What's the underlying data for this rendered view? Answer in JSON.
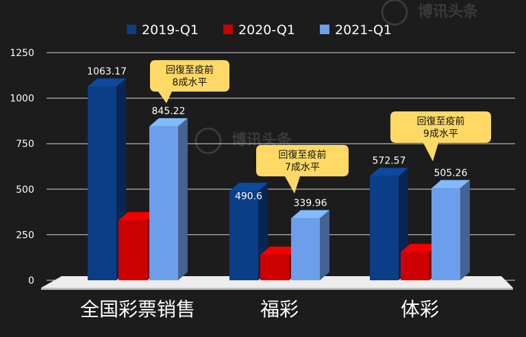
{
  "chart_data": {
    "type": "bar",
    "categories": [
      "全国彩票销售",
      "福彩",
      "体彩"
    ],
    "series": [
      {
        "name": "2019-Q1",
        "color": "#0b3e86",
        "values": [
          1063.17,
          490.6,
          572.57
        ]
      },
      {
        "name": "2020-Q1",
        "color": "#cc0000",
        "values": [
          330,
          140,
          155
        ]
      },
      {
        "name": "2021-Q1",
        "color": "#6d9eeb",
        "values": [
          845.22,
          339.96,
          505.26
        ]
      }
    ],
    "data_labels": {
      "2019-Q1": [
        "1063.17",
        "490.6",
        "572.57"
      ],
      "2021-Q1": [
        "845.22",
        "339.96",
        "505.26"
      ]
    },
    "y_ticks": [
      "0",
      "250",
      "500",
      "750",
      "1000",
      "1250"
    ],
    "ylim": [
      0,
      1250
    ],
    "grid": true,
    "legend_position": "top",
    "callouts": [
      {
        "line1": "回復至疫前",
        "line2": "8成水平"
      },
      {
        "line1": "回復至疫前",
        "line2": "7成水平"
      },
      {
        "line1": "回復至疫前",
        "line2": "9成水平"
      }
    ],
    "callout_color": "#ffd966",
    "watermark": "博讯头条"
  }
}
